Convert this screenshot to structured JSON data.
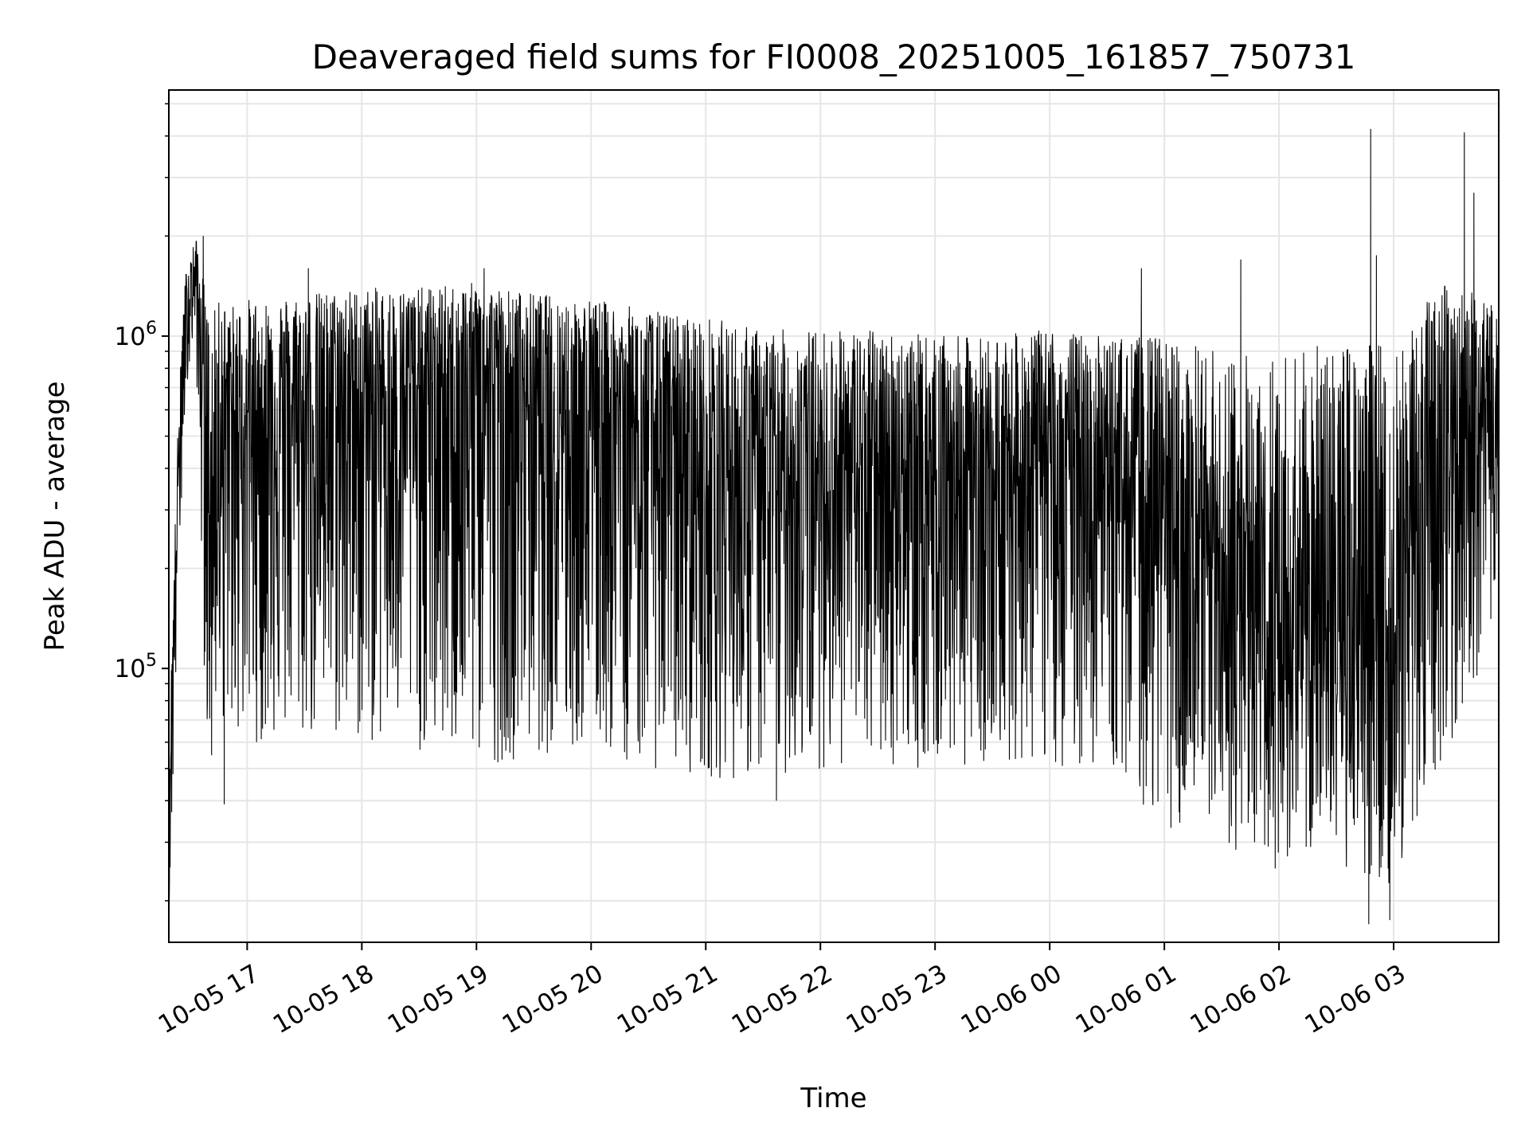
{
  "chart_data": {
    "type": "line",
    "title": "Deaveraged field sums for FI0008_20251005_161857_750731",
    "xlabel": "Time",
    "ylabel": "Peak ADU - average",
    "yscale": "log",
    "ylim": [
      15000,
      5500000
    ],
    "xlim": [
      "2025-10-05 16:19",
      "2025-10-06 03:55"
    ],
    "x_ticks": [
      "10-05 17",
      "10-05 18",
      "10-05 19",
      "10-05 20",
      "10-05 21",
      "10-05 22",
      "10-05 23",
      "10-06 00",
      "10-06 01",
      "10-06 02",
      "10-06 03"
    ],
    "y_ticks": [
      {
        "value": 100000,
        "base": "10",
        "exp": "5"
      },
      {
        "value": 1000000,
        "base": "10",
        "exp": "6"
      }
    ],
    "grid": true,
    "line_color": "#000000",
    "series": [
      {
        "x": [
          "2025-10-05 16:19",
          "2025-10-05 16:20",
          "2025-10-05 16:22",
          "2025-10-05 16:25",
          "2025-10-05 16:28",
          "2025-10-05 16:33",
          "2025-10-05 16:38",
          "2025-10-05 16:41",
          "2025-10-05 16:43",
          "2025-10-05 16:46",
          "2025-10-05 16:50",
          "2025-10-05 16:55",
          "2025-10-05 17:00",
          "2025-10-05 17:30",
          "2025-10-05 18:00",
          "2025-10-05 18:30",
          "2025-10-05 19:00",
          "2025-10-05 19:30",
          "2025-10-05 20:00",
          "2025-10-05 20:30",
          "2025-10-05 21:00",
          "2025-10-05 21:30",
          "2025-10-05 22:00",
          "2025-10-05 22:30",
          "2025-10-05 23:00",
          "2025-10-05 23:30",
          "2025-10-06 00:00",
          "2025-10-06 00:30",
          "2025-10-06 01:00",
          "2025-10-06 01:30",
          "2025-10-06 02:00",
          "2025-10-06 02:30",
          "2025-10-06 03:00",
          "2025-10-06 03:30",
          "2025-10-06 03:55"
        ],
        "center": [
          20000,
          60000,
          150000,
          600000,
          1200000,
          1600000,
          700000,
          300000,
          600000,
          750000,
          650000,
          600000,
          600000,
          650000,
          700000,
          720000,
          750000,
          700000,
          650000,
          550000,
          450000,
          380000,
          400000,
          420000,
          420000,
          430000,
          440000,
          420000,
          300000,
          160000,
          140000,
          150000,
          160000,
          550000,
          650000
        ],
        "upper": [
          30000,
          90000,
          250000,
          900000,
          1600000,
          2000000,
          1400000,
          1000000,
          1200000,
          1300000,
          1250000,
          1250000,
          1300000,
          1350000,
          1400000,
          1400000,
          1450000,
          1350000,
          1300000,
          1200000,
          1150000,
          1050000,
          1050000,
          1050000,
          1000000,
          1000000,
          1050000,
          1000000,
          1000000,
          900000,
          900000,
          950000,
          1000000,
          1500000,
          1200000
        ],
        "lower": [
          17000,
          25000,
          60000,
          250000,
          700000,
          1000000,
          80000,
          38000,
          70000,
          70000,
          65000,
          60000,
          60000,
          58000,
          58000,
          55000,
          50000,
          55000,
          55000,
          50000,
          47000,
          45000,
          50000,
          50000,
          50000,
          52000,
          50000,
          50000,
          33000,
          28000,
          27000,
          25000,
          22000,
          60000,
          140000
        ],
        "spikes": [
          {
            "x": "2025-10-06 02:48",
            "y": 4200000
          },
          {
            "x": "2025-10-06 03:37",
            "y": 4100000
          },
          {
            "x": "2025-10-06 03:42",
            "y": 2700000
          },
          {
            "x": "2025-10-05 16:37",
            "y": 2000000
          },
          {
            "x": "2025-10-06 00:48",
            "y": 1600000
          },
          {
            "x": "2025-10-06 01:40",
            "y": 1700000
          },
          {
            "x": "2025-10-06 02:51",
            "y": 1750000
          },
          {
            "x": "2025-10-05 19:04",
            "y": 1600000
          },
          {
            "x": "2025-10-05 17:32",
            "y": 1600000
          },
          {
            "x": "2025-10-06 02:47",
            "y": 17000
          },
          {
            "x": "2025-10-06 02:58",
            "y": 17500
          },
          {
            "x": "2025-10-05 16:48",
            "y": 39000
          },
          {
            "x": "2025-10-05 21:37",
            "y": 40000
          },
          {
            "x": "2025-10-06 01:58",
            "y": 25000
          }
        ]
      }
    ]
  }
}
